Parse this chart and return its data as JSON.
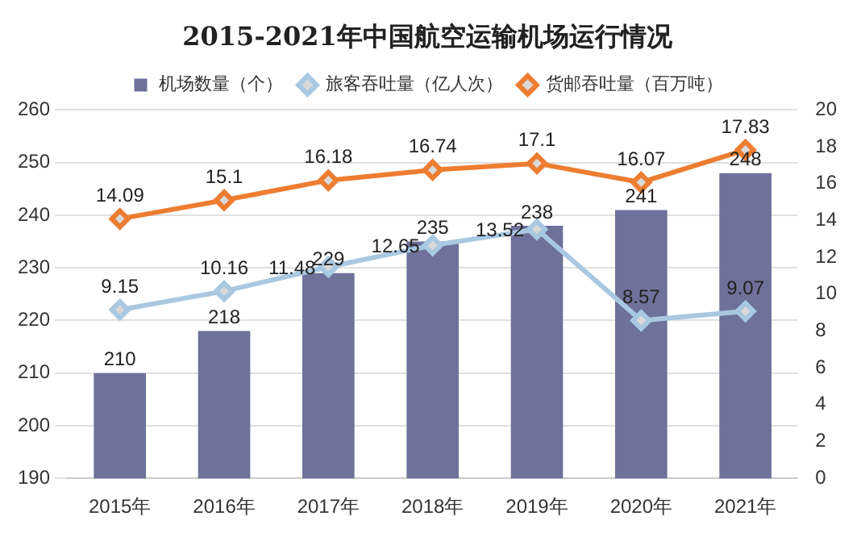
{
  "chart_data": {
    "type": "bar",
    "title": "2015-2021年中国航空运输机场运行情况",
    "categories": [
      "2015年",
      "2016年",
      "2017年",
      "2018年",
      "2019年",
      "2020年",
      "2021年"
    ],
    "series": [
      {
        "name": "机场数量（个）",
        "color": "#6e7199",
        "values": [
          210,
          218,
          229,
          235,
          238,
          241,
          248
        ]
      },
      {
        "name": "旅客吞吐量（亿人次）",
        "type": "line",
        "axis": "y2",
        "color": "#a9c8e2",
        "values": [
          9.15,
          10.16,
          11.48,
          12.65,
          13.52,
          8.57,
          9.07
        ]
      },
      {
        "name": "货邮吞吐量（百万吨）",
        "type": "line",
        "axis": "y2",
        "color": "#ed7d31",
        "values": [
          14.09,
          15.1,
          16.18,
          16.74,
          17.1,
          16.07,
          17.83
        ]
      }
    ],
    "ylim": [
      190,
      260
    ],
    "yticks": [
      190,
      200,
      210,
      220,
      230,
      240,
      250,
      260
    ],
    "y2lim": [
      0,
      20
    ],
    "y2ticks": [
      0,
      2,
      4,
      6,
      8,
      10,
      12,
      14,
      16,
      18,
      20
    ],
    "grid": "y",
    "legend": "top",
    "marker": "diamond",
    "data_labels": true
  }
}
